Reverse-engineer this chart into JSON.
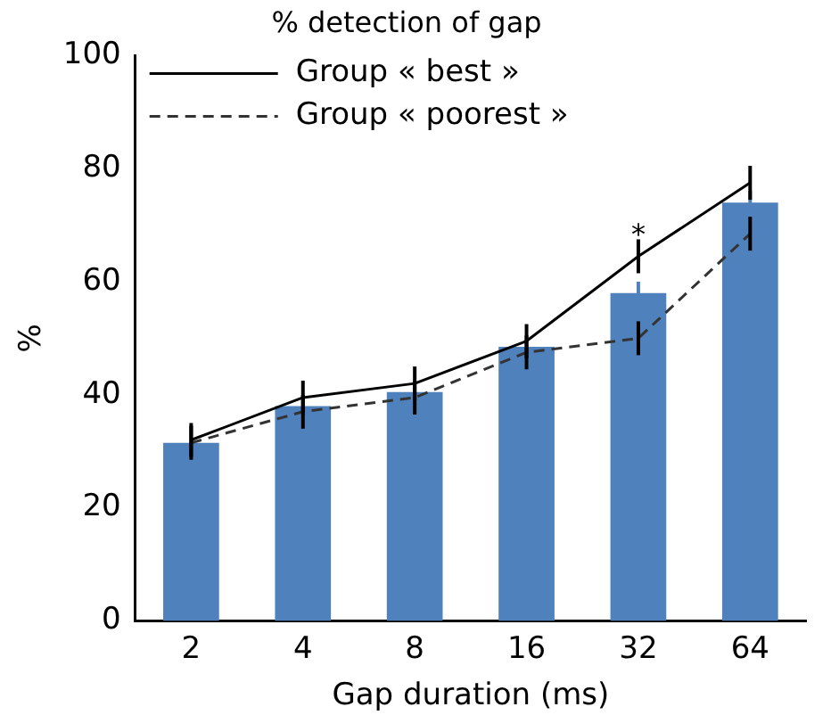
{
  "chart_data": {
    "type": "bar",
    "title": "% detection of gap",
    "xlabel": "Gap duration (ms)",
    "ylabel": "%",
    "categories": [
      "2",
      "4",
      "8",
      "16",
      "32",
      "64"
    ],
    "series": [
      {
        "color": "#4f81bd",
        "values": [
          31.5,
          38,
          40.5,
          48.5,
          58,
          74
        ],
        "errors": [
          null,
          null,
          null,
          null,
          2,
          2
        ]
      },
      {
        "type": "line",
        "name": "Group « best »",
        "color": "#000000",
        "line_style": "solid",
        "values": [
          32,
          39.5,
          42,
          49.5,
          64.5,
          77.5
        ],
        "errors": [
          3,
          3,
          3,
          3,
          3,
          3
        ]
      },
      {
        "type": "line",
        "name": "Group « poorest »",
        "color": "#333333",
        "line_style": "dashed",
        "values": [
          31.5,
          37,
          39.5,
          47.5,
          50,
          68.5
        ],
        "errors": [
          3,
          3,
          3,
          3,
          3,
          3
        ]
      }
    ],
    "ylim": [
      0,
      100
    ],
    "yticks": [
      0,
      20,
      40,
      60,
      80,
      100
    ],
    "grid": false,
    "legend": "top left",
    "marker": "none",
    "annotations": [
      {
        "text": "*",
        "x": "32",
        "y": 68
      }
    ]
  }
}
